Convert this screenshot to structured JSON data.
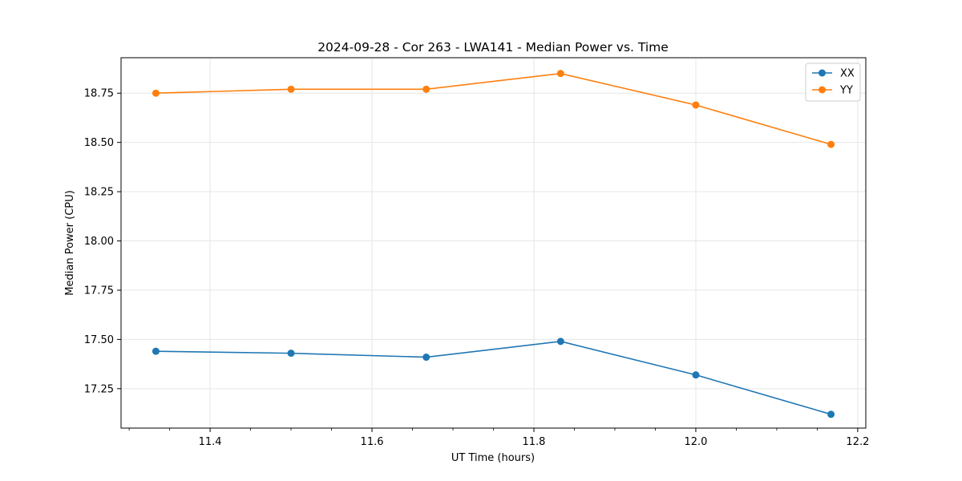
{
  "chart_data": {
    "type": "line",
    "title": "2024-09-28 - Cor 263 - LWA141 - Median Power vs. Time",
    "xlabel": "UT Time (hours)",
    "ylabel": "Median Power (CPU)",
    "x": [
      11.333,
      11.5,
      11.667,
      11.833,
      12.0,
      12.167
    ],
    "series": [
      {
        "name": "XX",
        "color": "#1f77b4",
        "values": [
          17.44,
          17.43,
          17.41,
          17.49,
          17.32,
          17.12
        ]
      },
      {
        "name": "YY",
        "color": "#ff7f0e",
        "values": [
          18.75,
          18.77,
          18.77,
          18.85,
          18.69,
          18.49
        ]
      }
    ],
    "xlim": [
      11.29,
      12.21
    ],
    "ylim": [
      17.05,
      18.93
    ],
    "xticks": [
      11.4,
      11.6,
      11.8,
      12.0,
      12.2
    ],
    "xtick_labels": [
      "11.4",
      "11.6",
      "11.8",
      "12.0",
      "12.2"
    ],
    "yticks": [
      17.25,
      17.5,
      17.75,
      18.0,
      18.25,
      18.5,
      18.75
    ],
    "ytick_labels": [
      "17.25",
      "17.50",
      "17.75",
      "18.00",
      "18.25",
      "18.50",
      "18.75"
    ],
    "grid": true,
    "legend_position": "top-right"
  }
}
